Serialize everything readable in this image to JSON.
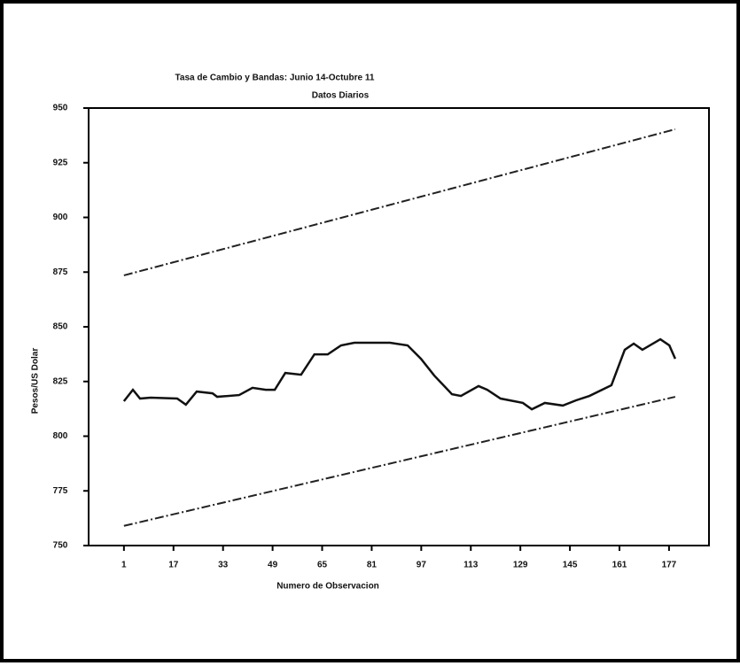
{
  "chart_data": {
    "type": "line",
    "title": "Tasa de Cambio y Bandas: Junio 14-Octubre 11",
    "subtitle": "Datos Diarios",
    "x_label": "Numero de Observacion",
    "y_label": "Pesos/US Dolar",
    "xlim": [
      -10.4,
      189.9
    ],
    "xticks": [
      1,
      17,
      33,
      49,
      65,
      81,
      97,
      113,
      129,
      145,
      161,
      177
    ],
    "ylim": [
      750,
      950
    ],
    "yticks": [
      750,
      775,
      800,
      825,
      850,
      875,
      900,
      925,
      950
    ],
    "series": [
      {
        "color": "#222222",
        "dash": true,
        "x": [
          1,
          179
        ],
        "values": [
          873.5,
          940.3
        ]
      },
      {
        "color": "#111111",
        "dash": false,
        "x": [
          1,
          3.9,
          6.2,
          9.6,
          18.2,
          21,
          24.5,
          29.6,
          31.1,
          38.2,
          42.5,
          46.8,
          49.7,
          53.1,
          58.2,
          62.5,
          66.8,
          71.1,
          75.4,
          86.9,
          92.6,
          96.9,
          101.2,
          106.9,
          109.8,
          115.5,
          118.3,
          122.6,
          129.8,
          132.7,
          136.9,
          142.7,
          147,
          151.3,
          158.4,
          162.7,
          165.6,
          168.4,
          174.2,
          177.1,
          179
        ],
        "values": [
          816,
          821.2,
          817.2,
          817.6,
          817.2,
          814.4,
          820.4,
          819.6,
          818,
          818.8,
          822.1,
          821.2,
          821.2,
          828.9,
          828.1,
          837.4,
          837.4,
          841.5,
          842.7,
          842.7,
          841.5,
          835.4,
          827.7,
          819.2,
          818.4,
          822.9,
          821.2,
          817.2,
          815.2,
          812.3,
          815.2,
          814,
          816.4,
          818.4,
          823.3,
          839.5,
          842.3,
          839.5,
          844.3,
          841.5,
          835.4
        ]
      },
      {
        "color": "#222222",
        "dash": true,
        "x": [
          1,
          179
        ],
        "values": [
          759,
          818
        ]
      }
    ]
  }
}
